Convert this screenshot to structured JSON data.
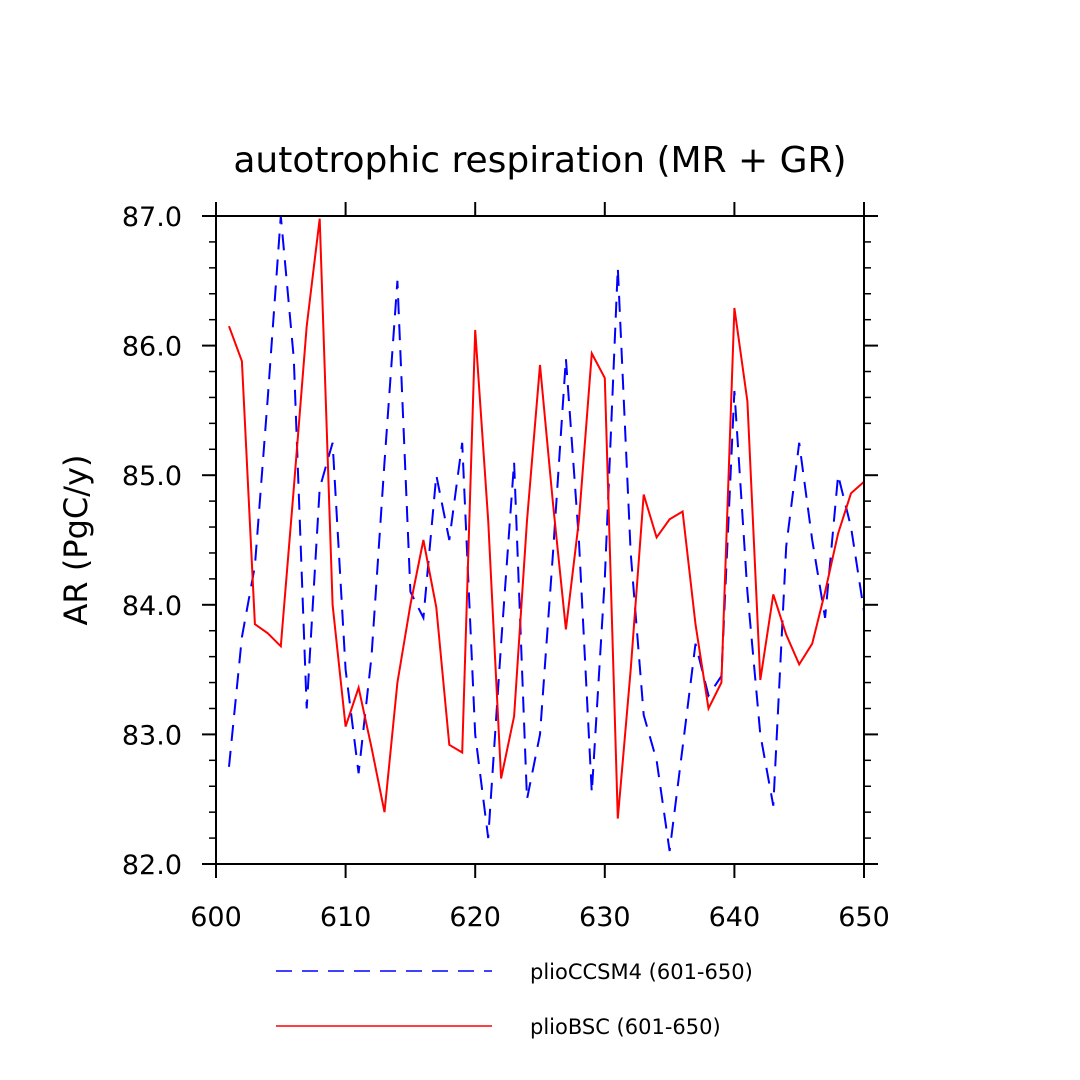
{
  "chart_data": {
    "type": "line",
    "title": "autotrophic respiration (MR + GR)",
    "xlabel": "",
    "ylabel": "AR  (PgC/y)",
    "xlim": [
      600,
      650
    ],
    "ylim": [
      82.0,
      87.0
    ],
    "x_ticks": [
      600,
      610,
      620,
      630,
      640,
      650
    ],
    "x_tick_labels": [
      "600",
      "610",
      "620",
      "630",
      "640",
      "650"
    ],
    "y_ticks": [
      82.0,
      83.0,
      84.0,
      85.0,
      86.0,
      87.0
    ],
    "y_tick_labels": [
      "82.0",
      "83.0",
      "84.0",
      "85.0",
      "86.0",
      "87.0"
    ],
    "x": [
      601,
      602,
      603,
      604,
      605,
      606,
      607,
      608,
      609,
      610,
      611,
      612,
      613,
      614,
      615,
      616,
      617,
      618,
      619,
      620,
      621,
      622,
      623,
      624,
      625,
      626,
      627,
      628,
      629,
      630,
      631,
      632,
      633,
      634,
      635,
      636,
      637,
      638,
      639,
      640,
      641,
      642,
      643,
      644,
      645,
      646,
      647,
      648,
      649,
      650
    ],
    "series": [
      {
        "name": "plioCCSM4 (601-650)",
        "color": "#0000ff",
        "dash": "dashed",
        "values": [
          82.75,
          83.75,
          84.3,
          85.6,
          87.0,
          85.9,
          83.2,
          84.9,
          85.25,
          83.5,
          82.7,
          83.6,
          85.1,
          86.5,
          84.1,
          83.9,
          85.0,
          84.5,
          85.25,
          83.0,
          82.2,
          83.7,
          85.1,
          82.5,
          83.0,
          84.4,
          85.9,
          84.5,
          82.55,
          84.2,
          86.6,
          84.4,
          83.15,
          82.8,
          82.1,
          82.9,
          83.7,
          83.3,
          83.45,
          85.65,
          84.1,
          83.0,
          82.45,
          84.45,
          85.25,
          84.5,
          83.9,
          85.0,
          84.6,
          83.95
        ]
      },
      {
        "name": "plioBSC (601-650)",
        "color": "#ff0000",
        "dash": "solid",
        "values": [
          86.15,
          85.88,
          83.85,
          83.78,
          83.68,
          84.9,
          86.15,
          86.98,
          84.0,
          83.06,
          83.36,
          82.9,
          82.4,
          83.4,
          84.0,
          84.5,
          83.98,
          82.92,
          82.86,
          86.12,
          84.65,
          82.66,
          83.14,
          84.65,
          85.85,
          84.78,
          83.81,
          84.65,
          85.94,
          85.75,
          82.35,
          83.5,
          84.85,
          84.52,
          84.66,
          84.72,
          83.85,
          83.2,
          83.4,
          86.29,
          85.57,
          83.42,
          84.08,
          83.77,
          83.54,
          83.7,
          84.1,
          84.55,
          84.86,
          84.95
        ]
      }
    ],
    "legend_position": "bottom",
    "grid": false
  }
}
